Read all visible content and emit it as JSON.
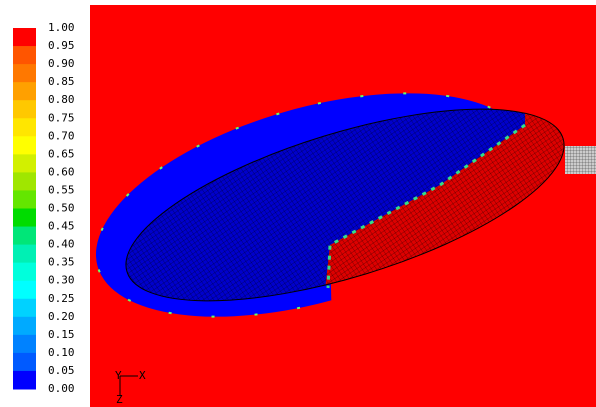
{
  "colorbar": {
    "labels": [
      "1.00",
      "0.95",
      "0.90",
      "0.85",
      "0.80",
      "0.75",
      "0.70",
      "0.65",
      "0.60",
      "0.55",
      "0.50",
      "0.45",
      "0.40",
      "0.35",
      "0.30",
      "0.25",
      "0.20",
      "0.15",
      "0.10",
      "0.05",
      "0.00"
    ],
    "colors": [
      "#ff0000",
      "#ff5500",
      "#ff7800",
      "#ffa000",
      "#ffc800",
      "#ffe600",
      "#ffff00",
      "#d2f000",
      "#a0e600",
      "#64e600",
      "#00dc00",
      "#00e678",
      "#00f0b4",
      "#00ffdc",
      "#00ffff",
      "#00d2ff",
      "#00aaff",
      "#0082ff",
      "#005aff",
      "#0000ff"
    ]
  },
  "triad": {
    "y": "Y",
    "x": "X",
    "z": "Z"
  }
}
